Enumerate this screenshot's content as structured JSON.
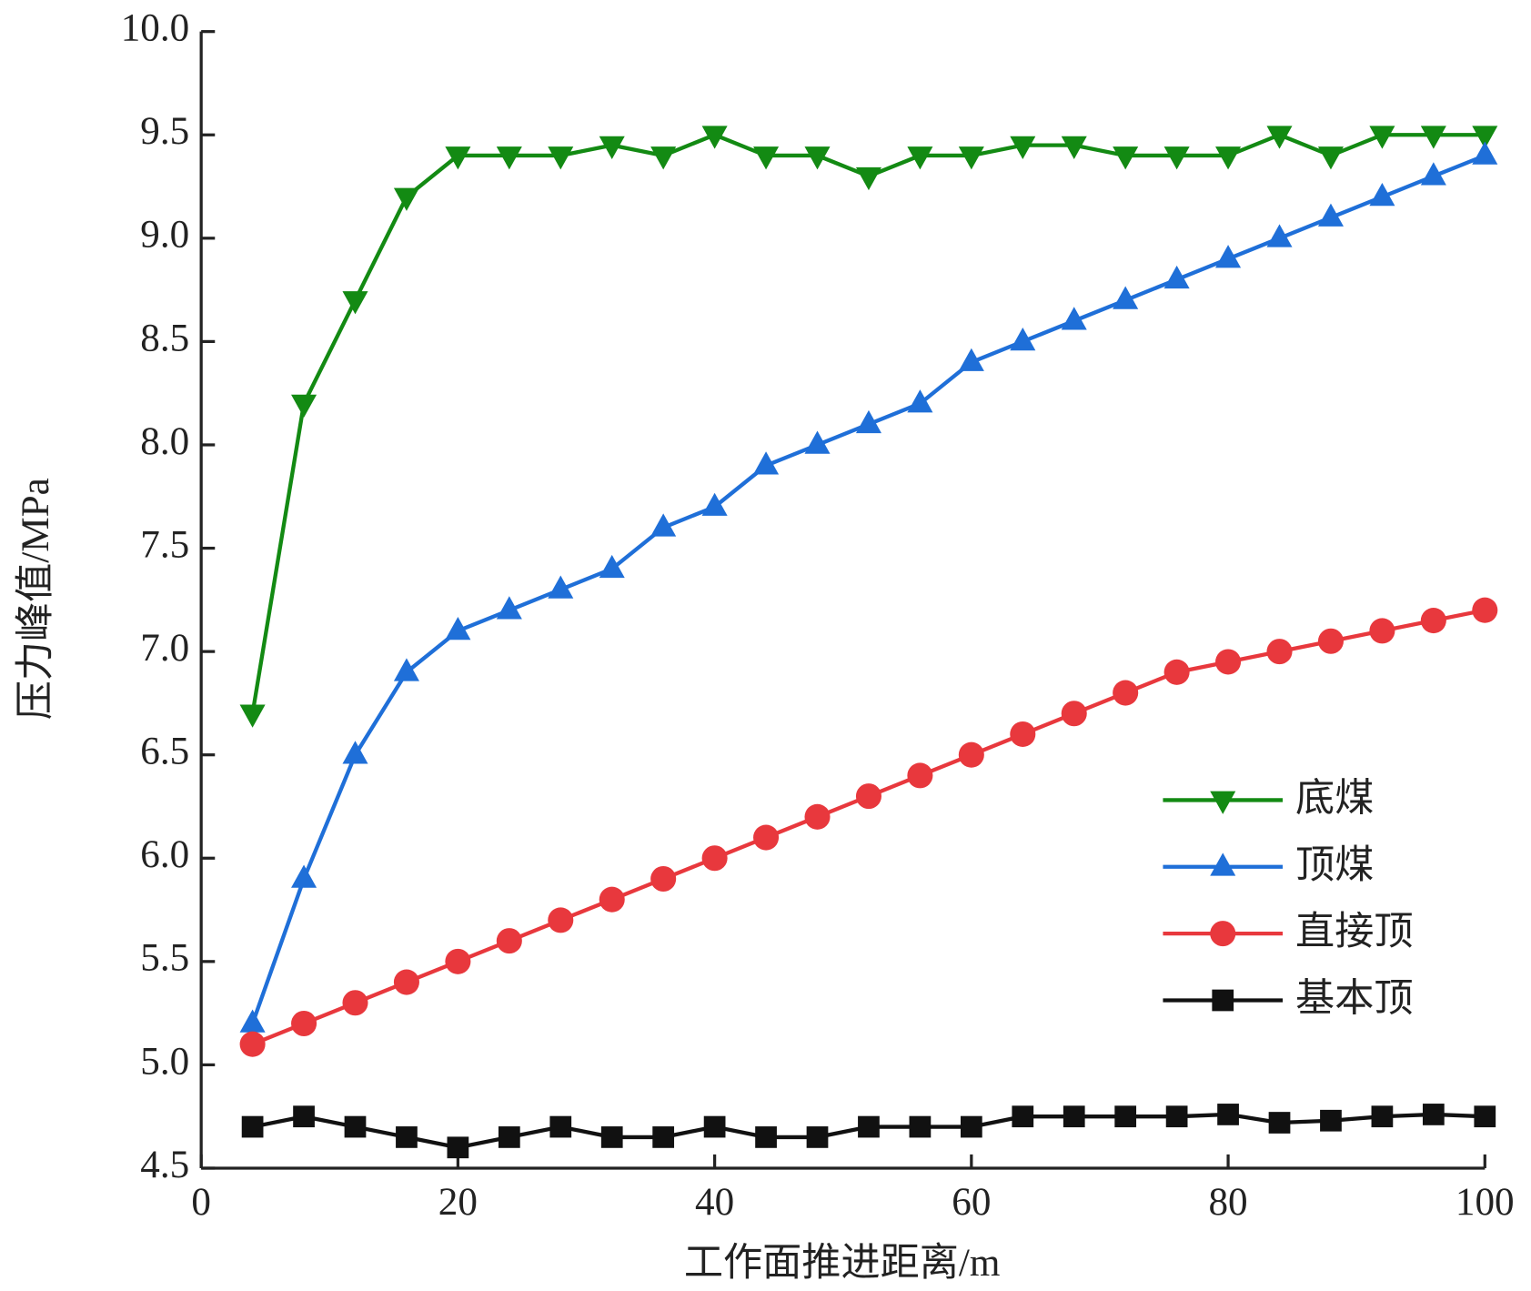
{
  "chart_data": {
    "type": "line",
    "x_label": "工作面推进距离/m",
    "y_label": "压力峰值/MPa",
    "x": [
      4,
      8,
      12,
      16,
      20,
      24,
      28,
      32,
      36,
      40,
      44,
      48,
      52,
      56,
      60,
      64,
      68,
      72,
      76,
      80,
      84,
      88,
      92,
      96,
      100
    ],
    "series": [
      {
        "name": "底煤",
        "color": "#138a13",
        "marker": "triangle-down",
        "values": [
          6.7,
          8.2,
          8.7,
          9.2,
          9.4,
          9.4,
          9.4,
          9.45,
          9.4,
          9.5,
          9.4,
          9.4,
          9.3,
          9.4,
          9.4,
          9.45,
          9.45,
          9.4,
          9.4,
          9.4,
          9.5,
          9.4,
          9.5,
          9.5,
          9.5
        ]
      },
      {
        "name": "顶煤",
        "color": "#1f6fd8",
        "marker": "triangle-up",
        "values": [
          5.2,
          5.9,
          6.5,
          6.9,
          7.1,
          7.2,
          7.3,
          7.4,
          7.6,
          7.7,
          7.9,
          8.0,
          8.1,
          8.2,
          8.4,
          8.5,
          8.6,
          8.7,
          8.8,
          8.9,
          9.0,
          9.1,
          9.2,
          9.3,
          9.4
        ]
      },
      {
        "name": "直接顶",
        "color": "#e8383d",
        "marker": "circle",
        "values": [
          5.1,
          5.2,
          5.3,
          5.4,
          5.5,
          5.6,
          5.7,
          5.8,
          5.9,
          6.0,
          6.1,
          6.2,
          6.3,
          6.4,
          6.5,
          6.6,
          6.7,
          6.8,
          6.9,
          6.95,
          7.0,
          7.05,
          7.1,
          7.15,
          7.2
        ]
      },
      {
        "name": "基本顶",
        "color": "#111111",
        "marker": "square",
        "values": [
          4.7,
          4.75,
          4.7,
          4.65,
          4.6,
          4.65,
          4.7,
          4.65,
          4.65,
          4.7,
          4.65,
          4.65,
          4.7,
          4.7,
          4.7,
          4.75,
          4.75,
          4.75,
          4.75,
          4.76,
          4.72,
          4.73,
          4.75,
          4.76,
          4.75
        ]
      }
    ],
    "xlim": [
      0,
      100
    ],
    "xticks": [
      0,
      20,
      40,
      60,
      80,
      100
    ],
    "ylim": [
      4.5,
      10.0
    ],
    "yticks": [
      4.5,
      {
        "value": 5.0,
        "label": "5.0"
      },
      5.5,
      {
        "value": 6.0,
        "label": "6.0"
      },
      6.5,
      {
        "value": 7.0,
        "label": "7.0"
      },
      7.5,
      {
        "value": 8.0,
        "label": "8.0"
      },
      8.5,
      {
        "value": 9.0,
        "label": "9.0"
      },
      9.5,
      {
        "value": 10.0,
        "label": "10.0"
      }
    ],
    "legend": "lower-right",
    "grid": false
  }
}
